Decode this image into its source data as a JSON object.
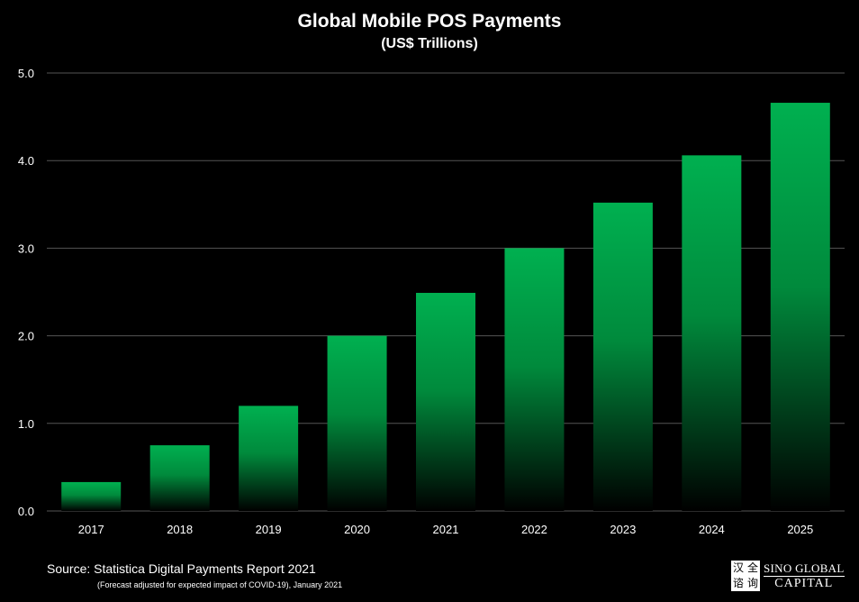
{
  "chart_data": {
    "type": "bar",
    "title": "Global Mobile POS Payments",
    "subtitle": "(US$ Trillions)",
    "categories": [
      "2017",
      "2018",
      "2019",
      "2020",
      "2021",
      "2022",
      "2023",
      "2024",
      "2025"
    ],
    "values": [
      0.33,
      0.75,
      1.2,
      2.0,
      2.49,
      3.0,
      3.52,
      4.06,
      4.66
    ],
    "yticks": [
      "0.0",
      "1.0",
      "2.0",
      "3.0",
      "4.0",
      "5.0"
    ],
    "ylim": [
      0,
      5
    ],
    "grid": true,
    "bar_color_top": "#00b050",
    "bar_color_bottom": "#000000",
    "grid_color": "#555555"
  },
  "footer": {
    "source": "Source: Statistica Digital Payments Report 2021",
    "note": "(Forecast adjusted for expected impact of COVID-19), January 2021"
  },
  "logo": {
    "seal_chars": [
      "汉",
      "全",
      "谘",
      "询"
    ],
    "line1": "SINO GLOBAL",
    "line2": "CAPITAL"
  }
}
